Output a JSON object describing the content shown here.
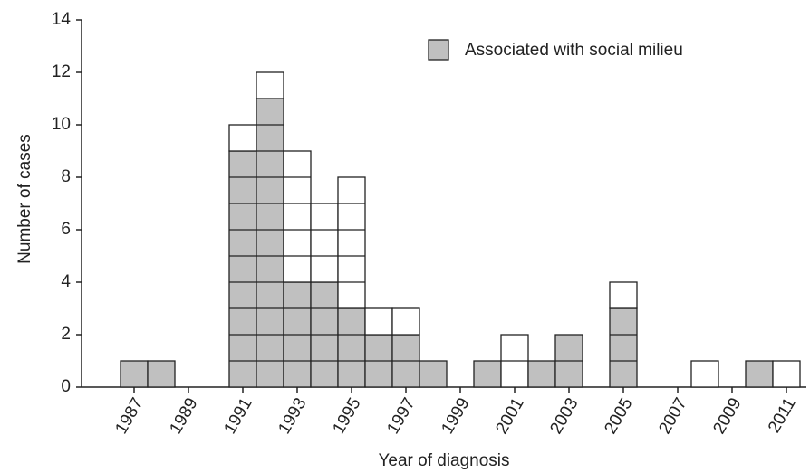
{
  "chart_data": {
    "type": "stacked-unit-histogram",
    "x_label": "Year of diagnosis",
    "y_label": "Number of cases",
    "categories": [
      "1987",
      null,
      "1989",
      null,
      "1991",
      null,
      "1993",
      null,
      "1995",
      null,
      "1997",
      null,
      "1999",
      null,
      "2001",
      null,
      "2003",
      null,
      "2005",
      null,
      "2007",
      null,
      "2009",
      null,
      "2011"
    ],
    "series": [
      {
        "name": "Associated with social milieu",
        "color": "#c0c0c0",
        "values": [
          1,
          1,
          0,
          0,
          9,
          11,
          4,
          4,
          3,
          2,
          2,
          1,
          0,
          1,
          0,
          1,
          2,
          0,
          3,
          0,
          0,
          0,
          0,
          1,
          0
        ]
      },
      {
        "color": "#ffffff",
        "values": [
          0,
          0,
          0,
          0,
          1,
          1,
          5,
          3,
          5,
          1,
          1,
          0,
          0,
          0,
          2,
          0,
          0,
          0,
          1,
          0,
          0,
          1,
          0,
          0,
          1
        ]
      }
    ],
    "ylim": [
      0,
      14
    ],
    "yticks": [
      0,
      2,
      4,
      6,
      8,
      10,
      12,
      14
    ],
    "legend": "upper right"
  }
}
